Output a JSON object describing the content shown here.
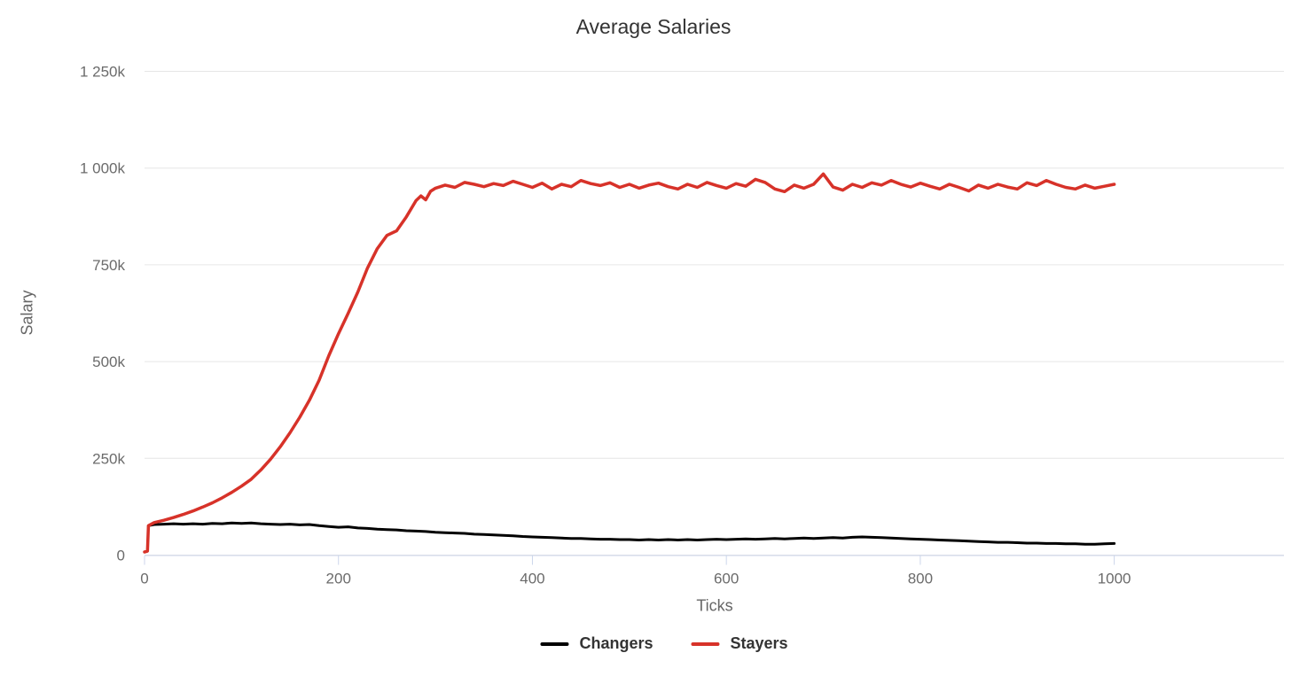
{
  "chart_data": {
    "type": "line",
    "title": "Average Salaries",
    "xlabel": "Ticks",
    "ylabel": "Salary",
    "xlim": [
      0,
      1175
    ],
    "ylim": [
      0,
      1250000
    ],
    "x_ticks": [
      0,
      200,
      400,
      600,
      800,
      1000
    ],
    "x_tick_labels": [
      "0",
      "200",
      "400",
      "600",
      "800",
      "1000"
    ],
    "y_ticks": [
      0,
      250000,
      500000,
      750000,
      1000000,
      1250000
    ],
    "y_tick_labels": [
      "0",
      "250k",
      "500k",
      "750k",
      "1 000k",
      "1 250k"
    ],
    "grid": "horizontal-only",
    "legend_position": "bottom-center",
    "y_unit": "thousands",
    "colors": {
      "grid": "#e6e6e6",
      "axis_line": "#ccd6eb",
      "tick": "#ccd6eb",
      "tick_label": "#6b6b6b",
      "title_text": "#333333",
      "axis_title_text": "#666666",
      "changers": "#000000",
      "stayers": "#d73229"
    },
    "series": [
      {
        "name": "Changers",
        "color": "#000000",
        "points": [
          [
            4,
            76
          ],
          [
            10,
            79
          ],
          [
            20,
            80
          ],
          [
            30,
            81
          ],
          [
            40,
            80
          ],
          [
            50,
            81
          ],
          [
            60,
            80
          ],
          [
            70,
            82
          ],
          [
            80,
            81
          ],
          [
            90,
            83
          ],
          [
            100,
            82
          ],
          [
            110,
            83
          ],
          [
            120,
            81
          ],
          [
            130,
            80
          ],
          [
            140,
            79
          ],
          [
            150,
            80
          ],
          [
            160,
            78
          ],
          [
            170,
            79
          ],
          [
            180,
            76
          ],
          [
            190,
            74
          ],
          [
            200,
            72
          ],
          [
            210,
            73
          ],
          [
            220,
            70
          ],
          [
            230,
            69
          ],
          [
            240,
            67
          ],
          [
            250,
            66
          ],
          [
            260,
            65
          ],
          [
            270,
            63
          ],
          [
            280,
            62
          ],
          [
            290,
            61
          ],
          [
            300,
            59
          ],
          [
            310,
            58
          ],
          [
            320,
            57
          ],
          [
            330,
            56
          ],
          [
            340,
            54
          ],
          [
            350,
            53
          ],
          [
            360,
            52
          ],
          [
            370,
            51
          ],
          [
            380,
            50
          ],
          [
            390,
            48
          ],
          [
            400,
            47
          ],
          [
            410,
            46
          ],
          [
            420,
            45
          ],
          [
            430,
            44
          ],
          [
            440,
            43
          ],
          [
            450,
            43
          ],
          [
            460,
            42
          ],
          [
            470,
            41
          ],
          [
            480,
            41
          ],
          [
            490,
            40
          ],
          [
            500,
            40
          ],
          [
            510,
            39
          ],
          [
            520,
            40
          ],
          [
            530,
            39
          ],
          [
            540,
            40
          ],
          [
            550,
            39
          ],
          [
            560,
            40
          ],
          [
            570,
            39
          ],
          [
            580,
            40
          ],
          [
            590,
            41
          ],
          [
            600,
            40
          ],
          [
            610,
            41
          ],
          [
            620,
            42
          ],
          [
            630,
            41
          ],
          [
            640,
            42
          ],
          [
            650,
            43
          ],
          [
            660,
            42
          ],
          [
            670,
            43
          ],
          [
            680,
            44
          ],
          [
            690,
            43
          ],
          [
            700,
            44
          ],
          [
            710,
            45
          ],
          [
            720,
            44
          ],
          [
            730,
            46
          ],
          [
            740,
            47
          ],
          [
            750,
            46
          ],
          [
            760,
            45
          ],
          [
            770,
            44
          ],
          [
            780,
            43
          ],
          [
            790,
            42
          ],
          [
            800,
            41
          ],
          [
            810,
            40
          ],
          [
            820,
            39
          ],
          [
            830,
            38
          ],
          [
            840,
            37
          ],
          [
            850,
            36
          ],
          [
            860,
            35
          ],
          [
            870,
            34
          ],
          [
            880,
            33
          ],
          [
            890,
            33
          ],
          [
            900,
            32
          ],
          [
            910,
            31
          ],
          [
            920,
            31
          ],
          [
            930,
            30
          ],
          [
            940,
            30
          ],
          [
            950,
            29
          ],
          [
            960,
            29
          ],
          [
            970,
            28
          ],
          [
            980,
            28
          ],
          [
            990,
            29
          ],
          [
            1000,
            30
          ]
        ]
      },
      {
        "name": "Stayers",
        "color": "#d73229",
        "points": [
          [
            0,
            8
          ],
          [
            3,
            10
          ],
          [
            4,
            76
          ],
          [
            10,
            84
          ],
          [
            20,
            90
          ],
          [
            30,
            97
          ],
          [
            40,
            105
          ],
          [
            50,
            114
          ],
          [
            60,
            124
          ],
          [
            70,
            135
          ],
          [
            80,
            148
          ],
          [
            90,
            162
          ],
          [
            100,
            178
          ],
          [
            110,
            196
          ],
          [
            120,
            220
          ],
          [
            130,
            248
          ],
          [
            140,
            280
          ],
          [
            150,
            316
          ],
          [
            160,
            356
          ],
          [
            170,
            400
          ],
          [
            180,
            452
          ],
          [
            190,
            515
          ],
          [
            200,
            572
          ],
          [
            210,
            625
          ],
          [
            220,
            680
          ],
          [
            230,
            742
          ],
          [
            240,
            792
          ],
          [
            250,
            826
          ],
          [
            260,
            838
          ],
          [
            270,
            874
          ],
          [
            280,
            916
          ],
          [
            285,
            928
          ],
          [
            290,
            918
          ],
          [
            295,
            940
          ],
          [
            300,
            948
          ],
          [
            310,
            956
          ],
          [
            320,
            950
          ],
          [
            330,
            963
          ],
          [
            340,
            958
          ],
          [
            350,
            952
          ],
          [
            360,
            960
          ],
          [
            370,
            955
          ],
          [
            380,
            966
          ],
          [
            390,
            958
          ],
          [
            400,
            950
          ],
          [
            410,
            961
          ],
          [
            420,
            946
          ],
          [
            430,
            958
          ],
          [
            440,
            952
          ],
          [
            450,
            968
          ],
          [
            460,
            960
          ],
          [
            470,
            955
          ],
          [
            480,
            962
          ],
          [
            490,
            950
          ],
          [
            500,
            958
          ],
          [
            510,
            948
          ],
          [
            520,
            956
          ],
          [
            530,
            961
          ],
          [
            540,
            952
          ],
          [
            550,
            946
          ],
          [
            560,
            958
          ],
          [
            570,
            950
          ],
          [
            580,
            963
          ],
          [
            590,
            955
          ],
          [
            600,
            948
          ],
          [
            610,
            960
          ],
          [
            620,
            953
          ],
          [
            630,
            971
          ],
          [
            640,
            963
          ],
          [
            650,
            946
          ],
          [
            660,
            939
          ],
          [
            670,
            956
          ],
          [
            680,
            948
          ],
          [
            690,
            958
          ],
          [
            700,
            985
          ],
          [
            710,
            951
          ],
          [
            720,
            943
          ],
          [
            730,
            958
          ],
          [
            740,
            950
          ],
          [
            750,
            962
          ],
          [
            760,
            956
          ],
          [
            770,
            968
          ],
          [
            780,
            958
          ],
          [
            790,
            951
          ],
          [
            800,
            961
          ],
          [
            810,
            953
          ],
          [
            820,
            946
          ],
          [
            830,
            958
          ],
          [
            840,
            950
          ],
          [
            850,
            941
          ],
          [
            860,
            956
          ],
          [
            870,
            948
          ],
          [
            880,
            958
          ],
          [
            890,
            951
          ],
          [
            900,
            946
          ],
          [
            910,
            962
          ],
          [
            920,
            955
          ],
          [
            930,
            968
          ],
          [
            940,
            958
          ],
          [
            950,
            950
          ],
          [
            960,
            946
          ],
          [
            970,
            956
          ],
          [
            980,
            948
          ],
          [
            990,
            953
          ],
          [
            1000,
            958
          ]
        ]
      }
    ]
  }
}
